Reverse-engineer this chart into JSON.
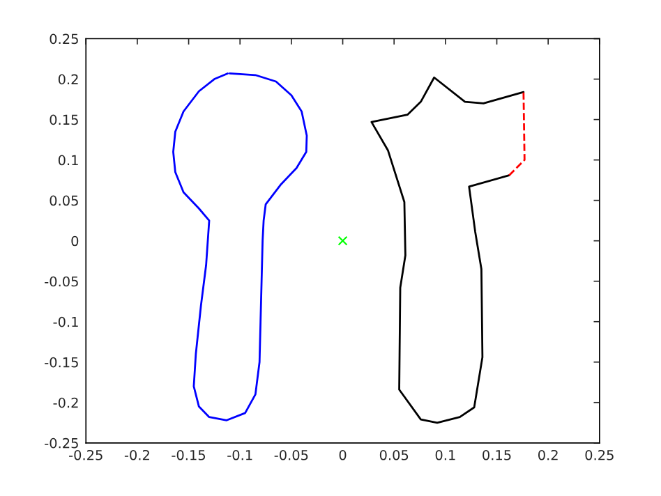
{
  "chart_data": {
    "type": "line",
    "xlim": [
      -0.25,
      0.25
    ],
    "ylim": [
      -0.25,
      0.25
    ],
    "xticks": [
      -0.25,
      -0.2,
      -0.15,
      -0.1,
      -0.05,
      0,
      0.05,
      0.1,
      0.15,
      0.2,
      0.25
    ],
    "yticks": [
      -0.25,
      -0.2,
      -0.15,
      -0.1,
      -0.05,
      0,
      0.05,
      0.1,
      0.15,
      0.2,
      0.25
    ],
    "grid": false,
    "legend": false,
    "series": [
      {
        "color": "#0000ff",
        "marker": "none",
        "line_style": "solid",
        "x": [
          -0.11,
          -0.085,
          -0.065,
          -0.05,
          -0.04,
          -0.035,
          -0.0355,
          -0.045,
          -0.06,
          -0.075,
          -0.077,
          -0.078,
          -0.079,
          -0.08,
          -0.081,
          -0.085,
          -0.095,
          -0.113,
          -0.13,
          -0.14,
          -0.145,
          -0.143,
          -0.138,
          -0.133,
          -0.13,
          -0.14,
          -0.155,
          -0.163,
          -0.165,
          -0.163,
          -0.155,
          -0.14,
          -0.125,
          -0.112
        ],
        "values": [
          0.207,
          0.205,
          0.197,
          0.18,
          0.16,
          0.13,
          0.11,
          0.09,
          0.07,
          0.045,
          0.025,
          0,
          -0.05,
          -0.1,
          -0.15,
          -0.19,
          -0.213,
          -0.222,
          -0.218,
          -0.205,
          -0.18,
          -0.14,
          -0.08,
          -0.03,
          0.025,
          0.04,
          0.06,
          0.085,
          0.11,
          0.135,
          0.16,
          0.185,
          0.2,
          0.207
        ]
      },
      {
        "color": "#000000",
        "marker": "none",
        "line_style": "solid",
        "x": [
          0.176,
          0.137,
          0.119,
          0.089,
          0.076,
          0.063,
          0.028,
          0.044,
          0.06,
          0.061,
          0.056,
          0.055,
          0.076,
          0.092,
          0.114,
          0.128,
          0.136,
          0.135,
          0.129,
          0.123,
          0.162
        ],
        "values": [
          0.184,
          0.17,
          0.172,
          0.202,
          0.172,
          0.156,
          0.147,
          0.112,
          0.048,
          -0.018,
          -0.058,
          -0.184,
          -0.221,
          -0.225,
          -0.218,
          -0.206,
          -0.144,
          -0.035,
          0.011,
          0.067,
          0.081
        ]
      },
      {
        "color": "#ff0000",
        "marker": "none",
        "line_style": "dashed",
        "x": [
          0.162,
          0.177,
          0.176
        ],
        "values": [
          0.081,
          0.1,
          0.184
        ]
      },
      {
        "type": "scatter",
        "color": "#00ff00",
        "marker": "cross",
        "x": [
          0
        ],
        "values": [
          0
        ]
      }
    ]
  }
}
